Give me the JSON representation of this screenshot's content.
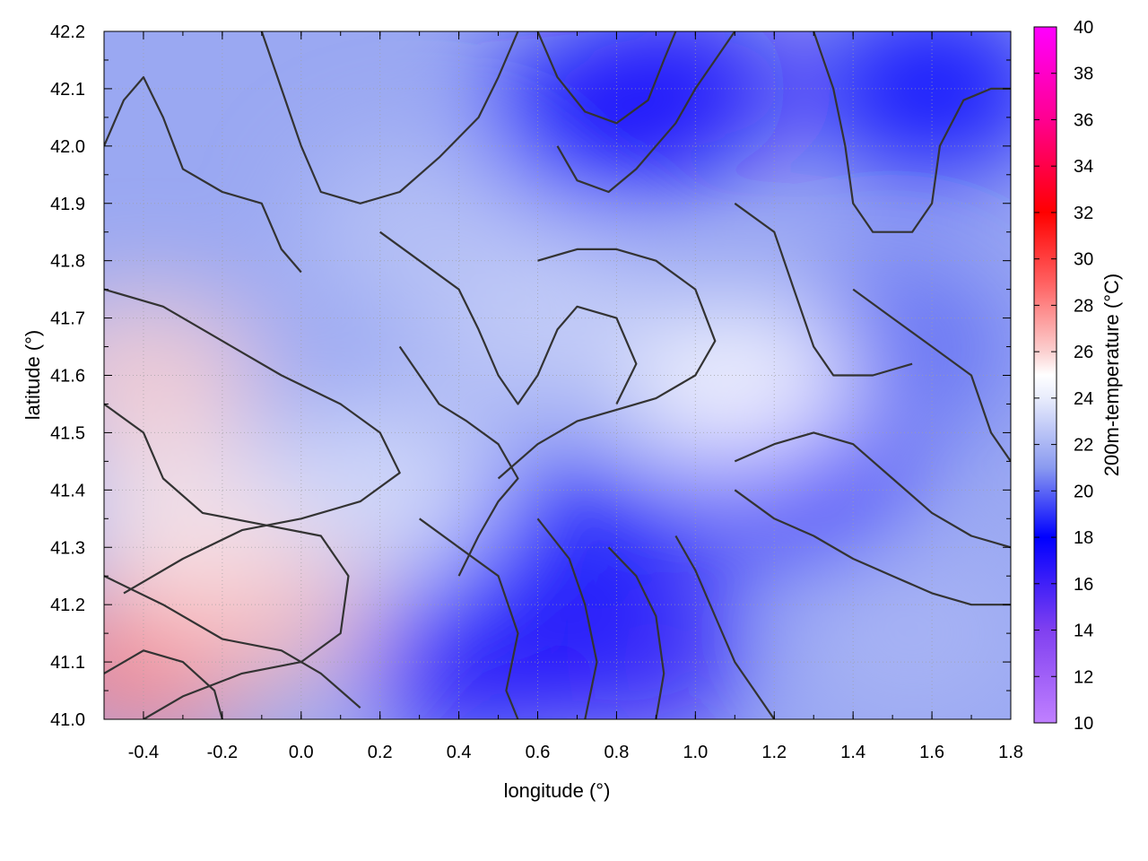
{
  "chart_data": {
    "type": "heatmap",
    "xlabel": "longitude (°)",
    "ylabel": "latitude (°)",
    "colorbar_label": "200m-temperature (°C)",
    "xlim": [
      -0.5,
      1.8
    ],
    "ylim": [
      41.0,
      42.2
    ],
    "clim": [
      10,
      40
    ],
    "x_ticks": [
      "-0.4",
      "-0.2",
      "0.0",
      "0.2",
      "0.4",
      "0.6",
      "0.8",
      "1.0",
      "1.2",
      "1.4",
      "1.6",
      "1.8"
    ],
    "x_tick_values": [
      -0.4,
      -0.2,
      0.0,
      0.2,
      0.4,
      0.6,
      0.8,
      1.0,
      1.2,
      1.4,
      1.6,
      1.8
    ],
    "y_ticks": [
      "41.0",
      "41.1",
      "41.2",
      "41.3",
      "41.4",
      "41.5",
      "41.6",
      "41.7",
      "41.8",
      "41.9",
      "42.0",
      "42.1",
      "42.2"
    ],
    "y_tick_values": [
      41.0,
      41.1,
      41.2,
      41.3,
      41.4,
      41.5,
      41.6,
      41.7,
      41.8,
      41.9,
      42.0,
      42.1,
      42.2
    ],
    "colorbar_ticks": [
      "10",
      "12",
      "14",
      "16",
      "18",
      "20",
      "22",
      "24",
      "26",
      "28",
      "30",
      "32",
      "34",
      "36",
      "38",
      "40"
    ],
    "colorbar_tick_values": [
      10,
      12,
      14,
      16,
      18,
      20,
      22,
      24,
      26,
      28,
      30,
      32,
      34,
      36,
      38,
      40
    ],
    "colormap": [
      {
        "value": 10,
        "color": "#c080ff"
      },
      {
        "value": 14,
        "color": "#8040f0"
      },
      {
        "value": 18,
        "color": "#0000ff"
      },
      {
        "value": 21,
        "color": "#8a9af0"
      },
      {
        "value": 24,
        "color": "#e8ecfc"
      },
      {
        "value": 25,
        "color": "#ffffff"
      },
      {
        "value": 26,
        "color": "#fbd0d0"
      },
      {
        "value": 29,
        "color": "#ff6060"
      },
      {
        "value": 32,
        "color": "#ff0000"
      },
      {
        "value": 36,
        "color": "#ff0090"
      },
      {
        "value": 40,
        "color": "#ff00ff"
      }
    ],
    "temperature_regions": [
      {
        "lon": 0.0,
        "lat": 41.6,
        "temp": 21.5
      },
      {
        "lon": 0.6,
        "lat": 41.7,
        "temp": 23.0
      },
      {
        "lon": 0.3,
        "lat": 41.85,
        "temp": 22.5
      },
      {
        "lon": 1.5,
        "lat": 41.65,
        "temp": 20.0
      },
      {
        "lon": 1.6,
        "lat": 42.1,
        "temp": 18.0
      },
      {
        "lon": 0.95,
        "lat": 42.1,
        "temp": 17.0
      },
      {
        "lon": 0.75,
        "lat": 42.05,
        "temp": 17.5
      },
      {
        "lon": 1.25,
        "lat": 41.42,
        "temp": 17.0
      },
      {
        "lon": 0.85,
        "lat": 41.12,
        "temp": 16.5
      },
      {
        "lon": 0.45,
        "lat": 41.1,
        "temp": 17.0
      },
      {
        "lon": 0.7,
        "lat": 41.3,
        "temp": 18.5
      },
      {
        "lon": 1.55,
        "lat": 41.15,
        "temp": 22.0
      },
      {
        "lon": -0.4,
        "lat": 41.1,
        "temp": 28.0
      },
      {
        "lon": -0.1,
        "lat": 41.2,
        "temp": 26.5
      },
      {
        "lon": -0.4,
        "lat": 41.6,
        "temp": 26.0
      },
      {
        "lon": -0.3,
        "lat": 41.35,
        "temp": 25.5
      },
      {
        "lon": 1.12,
        "lat": 41.58,
        "temp": 25.0
      },
      {
        "lon": 0.2,
        "lat": 41.4,
        "temp": 23.5
      }
    ],
    "contour_lines": [
      [
        [
          -0.5,
          41.75
        ],
        [
          -0.35,
          41.72
        ],
        [
          -0.2,
          41.66
        ],
        [
          -0.05,
          41.6
        ],
        [
          0.1,
          41.55
        ],
        [
          0.2,
          41.5
        ],
        [
          0.25,
          41.43
        ],
        [
          0.15,
          41.38
        ],
        [
          0.0,
          41.35
        ],
        [
          -0.15,
          41.33
        ],
        [
          -0.3,
          41.28
        ],
        [
          -0.45,
          41.22
        ]
      ],
      [
        [
          -0.5,
          41.55
        ],
        [
          -0.4,
          41.5
        ],
        [
          -0.35,
          41.42
        ],
        [
          -0.25,
          41.36
        ],
        [
          -0.1,
          41.34
        ],
        [
          0.05,
          41.32
        ],
        [
          0.12,
          41.25
        ],
        [
          0.1,
          41.15
        ],
        [
          0.0,
          41.1
        ],
        [
          -0.15,
          41.08
        ],
        [
          -0.3,
          41.04
        ],
        [
          -0.4,
          41.0
        ]
      ],
      [
        [
          -0.5,
          41.25
        ],
        [
          -0.35,
          41.2
        ],
        [
          -0.2,
          41.14
        ],
        [
          -0.05,
          41.12
        ],
        [
          0.05,
          41.08
        ],
        [
          0.15,
          41.02
        ]
      ],
      [
        [
          -0.5,
          41.08
        ],
        [
          -0.4,
          41.12
        ],
        [
          -0.3,
          41.1
        ],
        [
          -0.22,
          41.05
        ],
        [
          -0.2,
          41.0
        ]
      ],
      [
        [
          0.3,
          41.35
        ],
        [
          0.4,
          41.3
        ],
        [
          0.5,
          41.25
        ],
        [
          0.55,
          41.15
        ],
        [
          0.52,
          41.05
        ],
        [
          0.55,
          41.0
        ]
      ],
      [
        [
          0.6,
          41.35
        ],
        [
          0.68,
          41.28
        ],
        [
          0.72,
          41.2
        ],
        [
          0.75,
          41.1
        ],
        [
          0.72,
          41.0
        ]
      ],
      [
        [
          0.78,
          41.3
        ],
        [
          0.85,
          41.25
        ],
        [
          0.9,
          41.18
        ],
        [
          0.92,
          41.08
        ],
        [
          0.9,
          41.0
        ]
      ],
      [
        [
          0.95,
          41.32
        ],
        [
          1.0,
          41.26
        ],
        [
          1.05,
          41.18
        ],
        [
          1.1,
          41.1
        ],
        [
          1.15,
          41.05
        ],
        [
          1.2,
          41.0
        ]
      ],
      [
        [
          1.1,
          41.4
        ],
        [
          1.2,
          41.35
        ],
        [
          1.3,
          41.32
        ],
        [
          1.4,
          41.28
        ],
        [
          1.5,
          41.25
        ],
        [
          1.6,
          41.22
        ],
        [
          1.7,
          41.2
        ],
        [
          1.8,
          41.2
        ]
      ],
      [
        [
          1.1,
          41.45
        ],
        [
          1.2,
          41.48
        ],
        [
          1.3,
          41.5
        ],
        [
          1.4,
          41.48
        ],
        [
          1.5,
          41.42
        ],
        [
          1.6,
          41.36
        ],
        [
          1.7,
          41.32
        ],
        [
          1.8,
          41.3
        ]
      ],
      [
        [
          0.5,
          41.42
        ],
        [
          0.6,
          41.48
        ],
        [
          0.7,
          41.52
        ],
        [
          0.8,
          41.54
        ],
        [
          0.9,
          41.56
        ],
        [
          1.0,
          41.6
        ],
        [
          1.05,
          41.66
        ],
        [
          1.0,
          41.75
        ],
        [
          0.9,
          41.8
        ],
        [
          0.8,
          41.82
        ],
        [
          0.7,
          41.82
        ],
        [
          0.6,
          41.8
        ]
      ],
      [
        [
          0.2,
          41.85
        ],
        [
          0.3,
          41.8
        ],
        [
          0.4,
          41.75
        ],
        [
          0.45,
          41.68
        ],
        [
          0.5,
          41.6
        ],
        [
          0.55,
          41.55
        ],
        [
          0.6,
          41.6
        ],
        [
          0.65,
          41.68
        ],
        [
          0.7,
          41.72
        ],
        [
          0.8,
          41.7
        ],
        [
          0.85,
          41.62
        ],
        [
          0.8,
          41.55
        ]
      ],
      [
        [
          -0.1,
          42.2
        ],
        [
          -0.05,
          42.1
        ],
        [
          0.0,
          42.0
        ],
        [
          0.05,
          41.92
        ],
        [
          0.15,
          41.9
        ],
        [
          0.25,
          41.92
        ],
        [
          0.35,
          41.98
        ],
        [
          0.45,
          42.05
        ],
        [
          0.5,
          42.12
        ],
        [
          0.55,
          42.2
        ]
      ],
      [
        [
          -0.5,
          42.0
        ],
        [
          -0.45,
          42.08
        ],
        [
          -0.4,
          42.12
        ],
        [
          -0.35,
          42.05
        ],
        [
          -0.3,
          41.96
        ],
        [
          -0.2,
          41.92
        ],
        [
          -0.1,
          41.9
        ],
        [
          -0.05,
          41.82
        ],
        [
          0.0,
          41.78
        ]
      ],
      [
        [
          0.6,
          42.2
        ],
        [
          0.65,
          42.12
        ],
        [
          0.72,
          42.06
        ],
        [
          0.8,
          42.04
        ],
        [
          0.88,
          42.08
        ],
        [
          0.92,
          42.15
        ],
        [
          0.95,
          42.2
        ]
      ],
      [
        [
          0.65,
          42.0
        ],
        [
          0.7,
          41.94
        ],
        [
          0.78,
          41.92
        ],
        [
          0.85,
          41.96
        ],
        [
          0.9,
          42.0
        ],
        [
          0.95,
          42.04
        ],
        [
          1.0,
          42.1
        ],
        [
          1.05,
          42.15
        ],
        [
          1.1,
          42.2
        ]
      ],
      [
        [
          1.3,
          42.2
        ],
        [
          1.35,
          42.1
        ],
        [
          1.38,
          42.0
        ],
        [
          1.4,
          41.9
        ],
        [
          1.45,
          41.85
        ],
        [
          1.55,
          41.85
        ],
        [
          1.6,
          41.9
        ],
        [
          1.62,
          42.0
        ],
        [
          1.68,
          42.08
        ],
        [
          1.75,
          42.1
        ],
        [
          1.8,
          42.1
        ]
      ],
      [
        [
          1.4,
          41.75
        ],
        [
          1.5,
          41.7
        ],
        [
          1.6,
          41.65
        ],
        [
          1.7,
          41.6
        ],
        [
          1.75,
          41.5
        ],
        [
          1.8,
          41.45
        ]
      ],
      [
        [
          1.1,
          41.9
        ],
        [
          1.2,
          41.85
        ],
        [
          1.25,
          41.75
        ],
        [
          1.3,
          41.65
        ],
        [
          1.35,
          41.6
        ],
        [
          1.45,
          41.6
        ],
        [
          1.55,
          41.62
        ]
      ],
      [
        [
          0.4,
          41.25
        ],
        [
          0.45,
          41.32
        ],
        [
          0.5,
          41.38
        ],
        [
          0.55,
          41.42
        ],
        [
          0.5,
          41.48
        ],
        [
          0.42,
          41.52
        ],
        [
          0.35,
          41.55
        ],
        [
          0.3,
          41.6
        ],
        [
          0.25,
          41.65
        ]
      ]
    ]
  }
}
